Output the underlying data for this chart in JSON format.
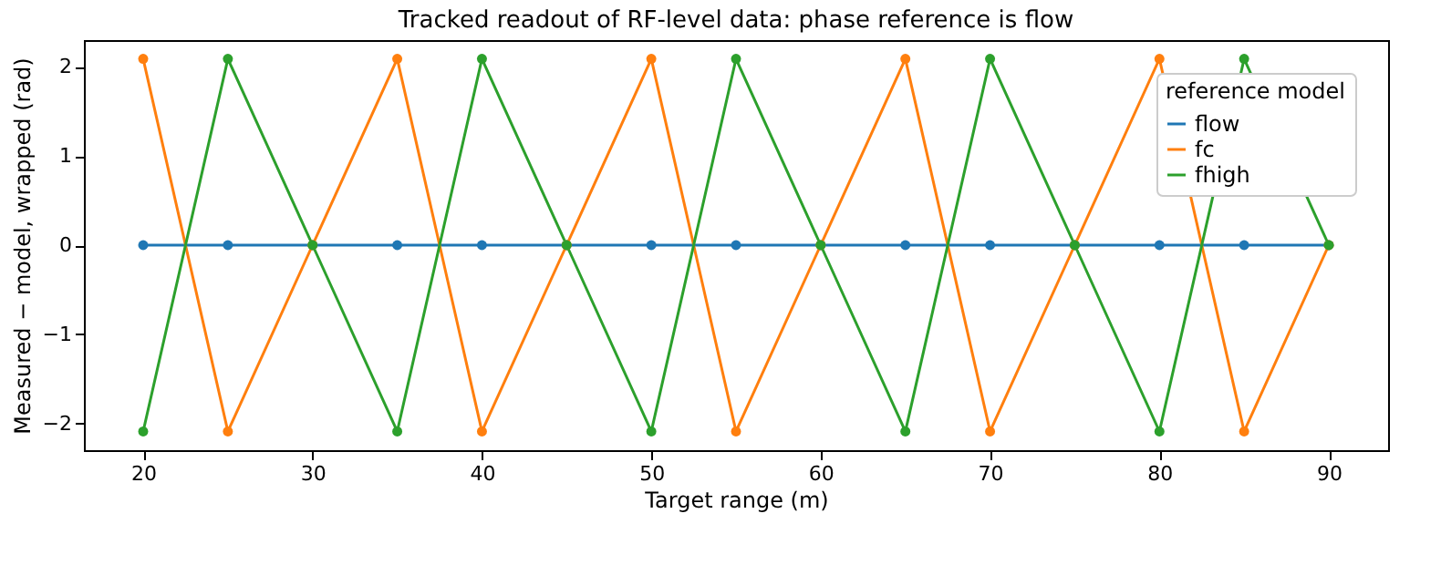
{
  "chart_data": {
    "type": "line",
    "title": "Tracked readout of RF-level data: phase reference is flow",
    "xlabel": "Target range (m)",
    "ylabel": "Measured − model, wrapped (rad)",
    "legend_title": "reference model",
    "legend": "top right",
    "marker": "circle",
    "line_style": "solid",
    "grid": false,
    "x": [
      20,
      25,
      30,
      35,
      40,
      45,
      50,
      55,
      60,
      65,
      70,
      75,
      80,
      85,
      90
    ],
    "series": [
      {
        "name": "flow",
        "color": "#1f77b4",
        "values": [
          0,
          0,
          0,
          0,
          0,
          0,
          0,
          0,
          0,
          0,
          0,
          0,
          0,
          0,
          0
        ]
      },
      {
        "name": "fc",
        "color": "#ff7f0e",
        "values": [
          2.09,
          -2.09,
          0,
          2.09,
          -2.09,
          0,
          2.09,
          -2.09,
          0,
          2.09,
          -2.09,
          0,
          2.09,
          -2.09,
          0
        ]
      },
      {
        "name": "fhigh",
        "color": "#2ca02c",
        "values": [
          -2.09,
          2.09,
          0,
          -2.09,
          2.09,
          0,
          -2.09,
          2.09,
          0,
          -2.09,
          2.09,
          0,
          -2.09,
          2.09,
          0
        ]
      }
    ],
    "xlim": [
      16.5,
      93.5
    ],
    "xticks": [
      20,
      30,
      40,
      50,
      60,
      70,
      80,
      90
    ],
    "ylim": [
      -2.3,
      2.3
    ],
    "yticks": [
      -2,
      -1,
      0,
      1,
      2
    ]
  }
}
